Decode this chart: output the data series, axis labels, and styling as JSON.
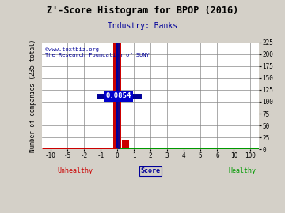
{
  "title": "Z'-Score Histogram for BPOP (2016)",
  "subtitle": "Industry: Banks",
  "watermark1": "©www.textbiz.org",
  "watermark2": "The Research Foundation of SUNY",
  "ylabel_left": "Number of companies (235 total)",
  "xlabel": "Score",
  "xlabel_unhealthy": "Unhealthy",
  "xlabel_healthy": "Healthy",
  "annotation": "0.0854",
  "xticklabels": [
    "-10",
    "-5",
    "-2",
    "-1",
    "0",
    "1",
    "2",
    "3",
    "4",
    "5",
    "6",
    "10",
    "100"
  ],
  "xtick_positions": [
    0,
    1,
    2,
    3,
    4,
    5,
    6,
    7,
    8,
    9,
    10,
    11,
    12
  ],
  "xtick_data_values": [
    -10,
    -5,
    -2,
    -1,
    0,
    1,
    2,
    3,
    4,
    5,
    6,
    10,
    100
  ],
  "ylim": [
    0,
    225
  ],
  "bg_color": "#d4d0c8",
  "plot_bg_color": "#ffffff",
  "grid_color": "#888888",
  "bar_red_x_data": 0.0,
  "bar_red_height": 225,
  "bar_blue_x_data": 0.0,
  "bar_blue_height": 225,
  "bar_red2_x_data": 0.5,
  "bar_red2_height": 18,
  "crosshair_x_data": 0.0854,
  "crosshair_y": 112,
  "annotation_box_color": "#0000cc",
  "annotation_text_color": "#ffffff",
  "red_color": "#cc0000",
  "blue_color": "#000099",
  "green_color": "#009900",
  "right_ytick_positions": [
    0,
    25,
    50,
    75,
    100,
    125,
    150,
    175,
    200,
    225
  ],
  "title_fontsize": 8.5,
  "subtitle_fontsize": 7,
  "tick_fontsize": 5.5,
  "watermark_fontsize": 5,
  "label_fontsize": 5.5
}
